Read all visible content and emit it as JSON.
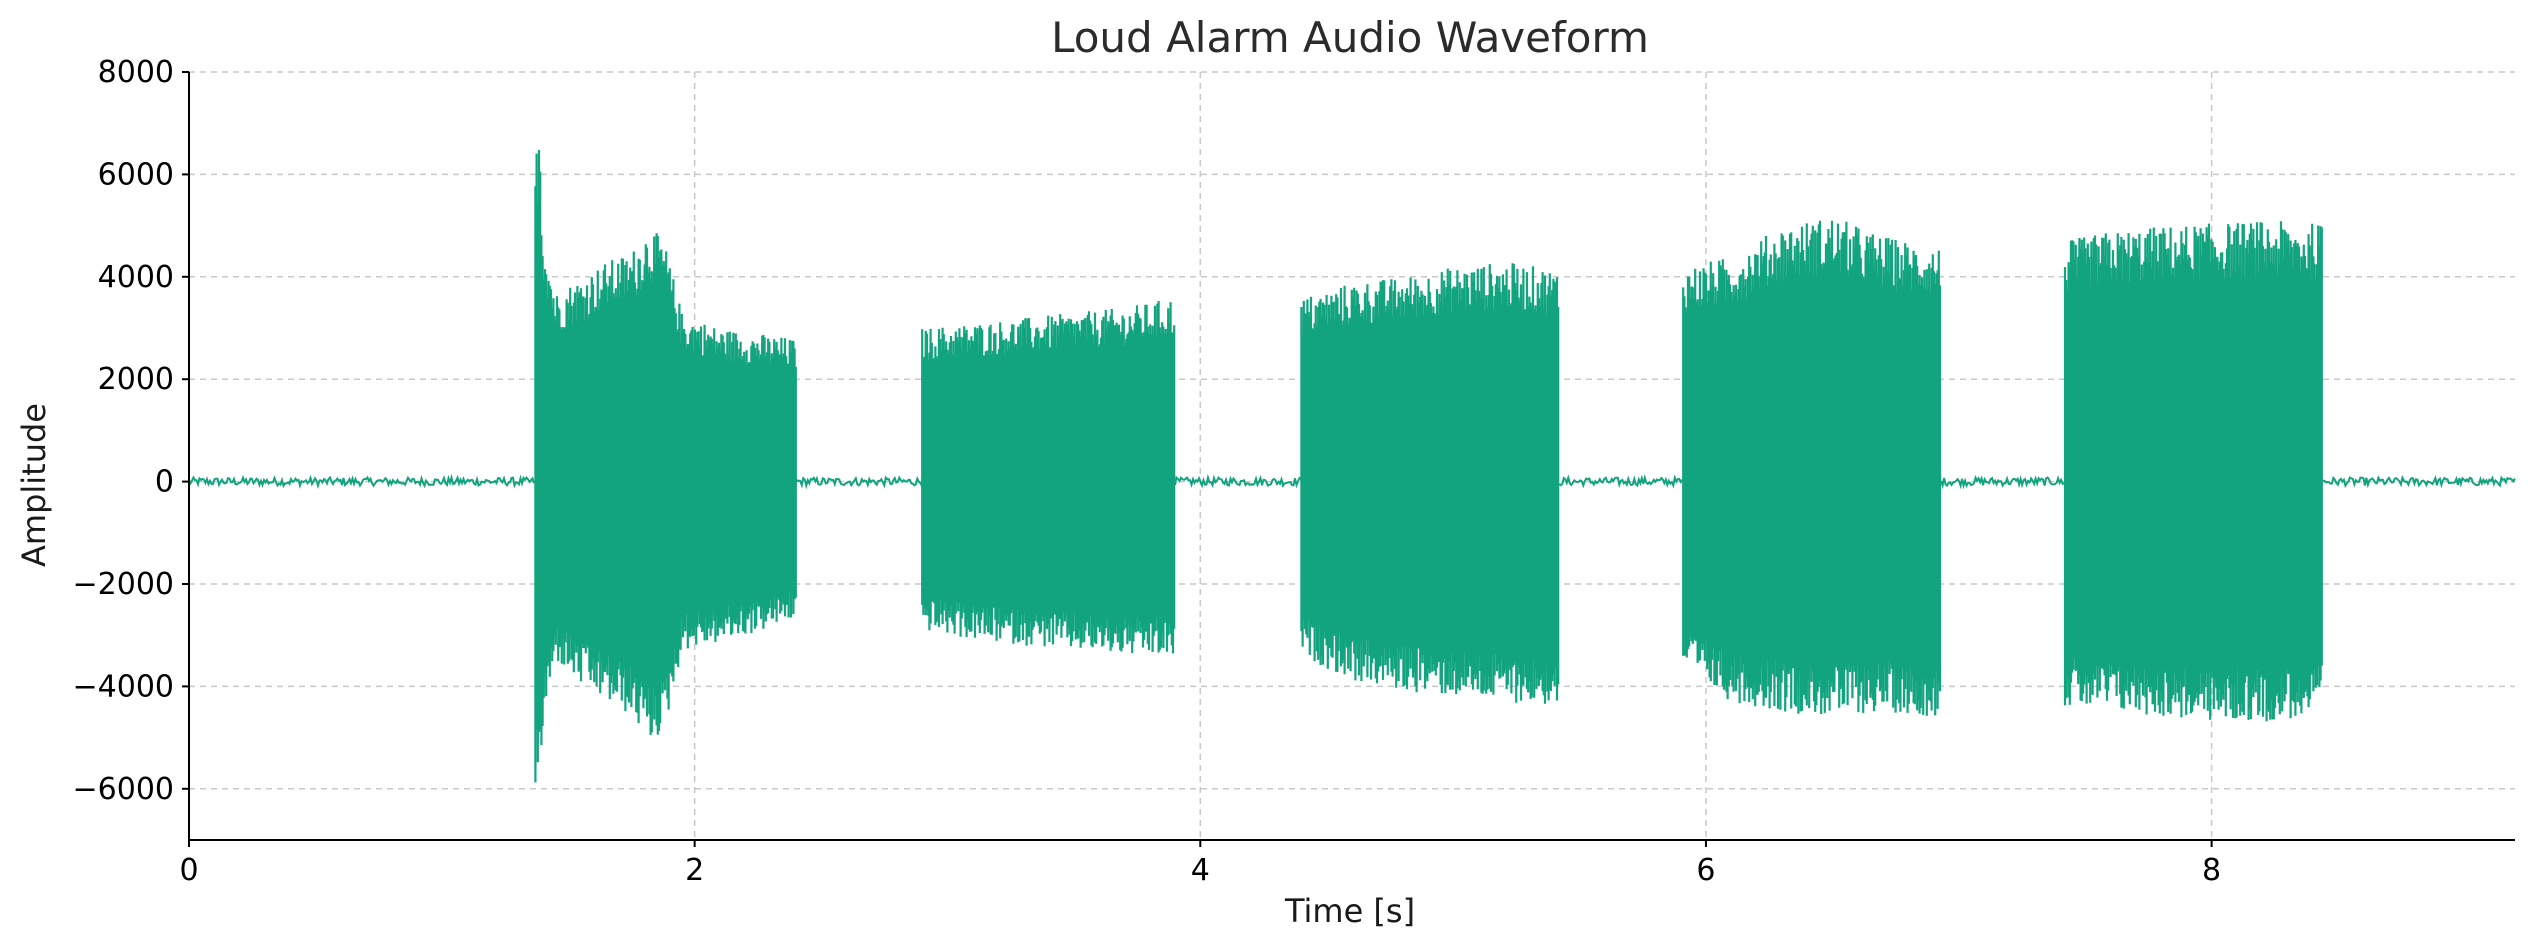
{
  "chart_data": {
    "type": "line",
    "title": "Loud Alarm Audio Waveform",
    "xlabel": "Time [s]",
    "ylabel": "Amplitude",
    "xlim": [
      0,
      9.2
    ],
    "ylim": [
      -7000,
      8000
    ],
    "xticks": [
      0,
      2,
      4,
      6,
      8
    ],
    "xtick_labels": [
      "0",
      "2",
      "4",
      "6",
      "8"
    ],
    "yticks": [
      -6000,
      -4000,
      -2000,
      0,
      2000,
      4000,
      6000,
      8000
    ],
    "ytick_labels": [
      "−6000",
      "−4000",
      "−2000",
      "0",
      "2000",
      "4000",
      "6000",
      "8000"
    ],
    "grid": true,
    "grid_style": "dashed",
    "line_color": "#12a37f",
    "noise_floor": 80,
    "series": [
      {
        "segments": [
          {
            "start": 1.37,
            "end": 2.4,
            "envelope": [
              [
                1.37,
                6200,
                -6200
              ],
              [
                1.385,
                7350,
                -6200
              ],
              [
                1.4,
                5000,
                -4800
              ],
              [
                1.45,
                3700,
                -3500
              ],
              [
                1.55,
                4000,
                -4000
              ],
              [
                1.65,
                4300,
                -4300
              ],
              [
                1.75,
                4500,
                -4600
              ],
              [
                1.82,
                5000,
                -5100
              ],
              [
                1.88,
                4700,
                -4900
              ],
              [
                1.95,
                3300,
                -3300
              ],
              [
                2.1,
                3000,
                -3150
              ],
              [
                2.25,
                2900,
                -2950
              ],
              [
                2.39,
                2800,
                -2700
              ]
            ]
          },
          {
            "start": 2.9,
            "end": 3.9,
            "envelope": [
              [
                2.9,
                3000,
                -2900
              ],
              [
                3.1,
                3100,
                -3100
              ],
              [
                3.3,
                3200,
                -3200
              ],
              [
                3.5,
                3300,
                -3300
              ],
              [
                3.7,
                3400,
                -3400
              ],
              [
                3.89,
                3600,
                -3450
              ]
            ]
          },
          {
            "start": 4.4,
            "end": 5.42,
            "envelope": [
              [
                4.4,
                3600,
                -3400
              ],
              [
                4.6,
                3900,
                -3900
              ],
              [
                4.8,
                4000,
                -4100
              ],
              [
                5.0,
                4200,
                -4200
              ],
              [
                5.2,
                4300,
                -4300
              ],
              [
                5.41,
                4150,
                -4400
              ]
            ]
          },
          {
            "start": 5.91,
            "end": 6.93,
            "envelope": [
              [
                5.91,
                4200,
                -3700
              ],
              [
                6.1,
                4400,
                -4300
              ],
              [
                6.3,
                5000,
                -4500
              ],
              [
                6.5,
                5200,
                -4600
              ],
              [
                6.7,
                4800,
                -4500
              ],
              [
                6.92,
                4600,
                -4600
              ]
            ]
          },
          {
            "start": 7.42,
            "end": 8.44,
            "envelope": [
              [
                7.42,
                4700,
                -4400
              ],
              [
                7.6,
                4900,
                -4500
              ],
              [
                7.8,
                5000,
                -4600
              ],
              [
                8.0,
                5050,
                -4700
              ],
              [
                8.2,
                5100,
                -4700
              ],
              [
                8.43,
                5050,
                -4600
              ]
            ]
          }
        ]
      }
    ]
  }
}
